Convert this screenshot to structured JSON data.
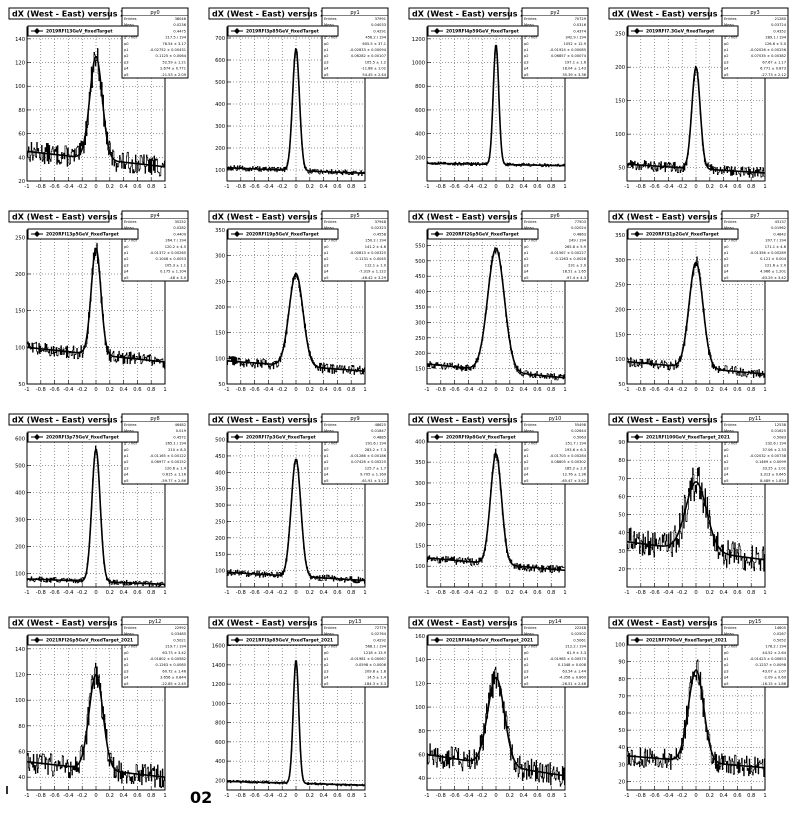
{
  "chart_data": [
    {
      "type": "line",
      "pad": "py0",
      "title": "dX (West - East) versus Z",
      "legend": "2019RFI13GeV_fixedTarget",
      "ylim": [
        20,
        150
      ],
      "yticks": [
        20,
        40,
        60,
        80,
        100,
        120,
        140
      ],
      "xlim": [
        -1,
        1
      ],
      "peak": 125,
      "base_left": 45,
      "base_right": 32,
      "width": 0.09,
      "noise": 9,
      "stats": [
        [
          "Entries",
          "38046"
        ],
        [
          "Mean",
          "0.0236"
        ],
        [
          "Std Dev",
          "0.4475"
        ],
        [
          "χ² / ndf",
          "217.5 / 194"
        ],
        [
          "p0",
          "76.54 ± 3.17"
        ],
        [
          "p1",
          "-0.02752 ± 0.00431"
        ],
        [
          "p2",
          "0.1125 ± 0.0064"
        ],
        [
          "p3",
          "52.59 ± 1.21"
        ],
        [
          "p4",
          "2.674 ± 0.771"
        ],
        [
          "p5",
          "-21.53 ± 2.09"
        ]
      ]
    },
    {
      "type": "line",
      "pad": "py1",
      "title": "dX (West - East) versus Z",
      "legend": "2019RFI3p85GeV_fixedTarget",
      "ylim": [
        50,
        750
      ],
      "yticks": [
        100,
        200,
        300,
        400,
        500,
        600,
        700
      ],
      "xlim": [
        -1,
        1
      ],
      "peak": 650,
      "base_left": 110,
      "base_right": 85,
      "width": 0.05,
      "noise": 12,
      "stats": [
        [
          "Entries",
          "37991"
        ],
        [
          "Mean",
          "0.04033"
        ],
        [
          "Std Dev",
          "0.4291"
        ],
        [
          "χ² / ndf",
          "456.2 / 194"
        ],
        [
          "p0",
          "605.5 ± 37.1"
        ],
        [
          "p1",
          "-0.02833 ± 0.00094"
        ],
        [
          "p2",
          "0.06282 ± 0.00107"
        ],
        [
          "p3",
          "105.5 ± 1.2"
        ],
        [
          "p4",
          "-11.88 ± 1.02"
        ],
        [
          "p5",
          "54.45 ± 2.44"
        ]
      ]
    },
    {
      "type": "line",
      "pad": "py2",
      "title": "dX (West - East) versus Z",
      "legend": "2019RFI4p59GeV_fixedTarget",
      "ylim": [
        0,
        1300
      ],
      "yticks": [
        200,
        400,
        600,
        800,
        1000,
        1200
      ],
      "xlim": [
        -1,
        1
      ],
      "peak": 1150,
      "base_left": 150,
      "base_right": 130,
      "width": 0.04,
      "noise": 14,
      "stats": [
        [
          "Entries",
          "70729"
        ],
        [
          "Mean",
          "0.0316"
        ],
        [
          "Std Dev",
          "0.4374"
        ],
        [
          "χ² / ndf",
          "342.9 / 194"
        ],
        [
          "p0",
          "1052 ± 12.9"
        ],
        [
          "p1",
          "-0.01924 ± 0.00085"
        ],
        [
          "p2",
          "0.06857 ± 0.00074"
        ],
        [
          "p3",
          "197.1 ± 1.6"
        ],
        [
          "p4",
          "18.04 ± 1.43"
        ],
        [
          "p5",
          "35.39 ± 3.36"
        ]
      ]
    },
    {
      "type": "line",
      "pad": "py3",
      "title": "dX (West - East) versus Z",
      "legend": "2019RFI7.3GeV_fixedTarget",
      "ylim": [
        30,
        260
      ],
      "yticks": [
        50,
        100,
        150,
        200,
        250
      ],
      "xlim": [
        -1,
        1
      ],
      "peak": 200,
      "base_left": 55,
      "base_right": 42,
      "width": 0.06,
      "noise": 8,
      "stats": [
        [
          "Entries",
          "21280"
        ],
        [
          "Mean",
          "0.03724"
        ],
        [
          "Std Dev",
          "0.4352"
        ],
        [
          "χ² / ndf",
          "289.1 / 194"
        ],
        [
          "p0",
          "126.6 ± 5.0"
        ],
        [
          "p1",
          "-0.02026 ± 0.00256"
        ],
        [
          "p2",
          "0.07035 ± 0.00382"
        ],
        [
          "p3",
          "67.67 ± 1.17"
        ],
        [
          "p4",
          "6.771 ± 0.873"
        ],
        [
          "p5",
          "-27.73 ± 2.12"
        ]
      ]
    },
    {
      "type": "line",
      "pad": "py4",
      "title": "dX (West - East) versus Z",
      "legend": "2020RFI13p5GeV_fixedTarget",
      "ylim": [
        50,
        260
      ],
      "yticks": [
        50,
        100,
        150,
        200,
        250
      ],
      "xlim": [
        -1,
        1
      ],
      "peak": 235,
      "base_left": 100,
      "base_right": 80,
      "width": 0.07,
      "noise": 9,
      "stats": [
        [
          "Entries",
          "35252"
        ],
        [
          "Mean",
          "0.0282"
        ],
        [
          "Std Dev",
          "0.4409"
        ],
        [
          "χ² / ndf",
          "264.7 / 194"
        ],
        [
          "p0",
          "120.2 ± 4.5"
        ],
        [
          "p1",
          "-0.01372 ± 0.00265"
        ],
        [
          "p2",
          "0.1048 ± 0.0053"
        ],
        [
          "p3",
          "105.3 ± 1.1"
        ],
        [
          "p4",
          "0.175 ± 1.104"
        ],
        [
          "p5",
          "-48 ± 3.0"
        ]
      ]
    },
    {
      "type": "line",
      "pad": "py5",
      "title": "dX (West - East) versus Z",
      "legend": "2020RFI19p5GeV_fixedTarget",
      "ylim": [
        50,
        350
      ],
      "yticks": [
        50,
        100,
        150,
        200,
        250,
        300,
        350
      ],
      "xlim": [
        -1,
        1
      ],
      "peak": 265,
      "base_left": 95,
      "base_right": 75,
      "width": 0.1,
      "noise": 10,
      "stats": [
        [
          "Entries",
          "37948"
        ],
        [
          "Mean",
          "0.02323"
        ],
        [
          "Std Dev",
          "0.4558"
        ],
        [
          "χ² / ndf",
          "250.2 / 194"
        ],
        [
          "p0",
          "141.2 ± 4.6"
        ],
        [
          "p1",
          "-0.00813 ± 0.00325"
        ],
        [
          "p2",
          "0.1131 ± 0.0045"
        ],
        [
          "p3",
          "112.1 ± 1.0"
        ],
        [
          "p4",
          "-7.319 ± 1.122"
        ],
        [
          "p5",
          "-46.42 ± 3.29"
        ]
      ]
    },
    {
      "type": "line",
      "pad": "py6",
      "title": "dX (West - East) versus Z",
      "legend": "2020RFI26p5GeV_fixedTarget",
      "ylim": [
        100,
        600
      ],
      "yticks": [
        150,
        200,
        250,
        300,
        350,
        400,
        450,
        500,
        550
      ],
      "xlim": [
        -1,
        1
      ],
      "peak": 540,
      "base_left": 165,
      "base_right": 120,
      "width": 0.12,
      "noise": 12,
      "stats": [
        [
          "Entries",
          "77503"
        ],
        [
          "Mean",
          "0.02024"
        ],
        [
          "Std Dev",
          "0.4863"
        ],
        [
          "χ² / ndf",
          "249 / 194"
        ],
        [
          "p0",
          "265.8 ± 5.9"
        ],
        [
          "p1",
          "-0.01567 ± 0.00227"
        ],
        [
          "p2",
          "0.1263 ± 0.0028"
        ],
        [
          "p3",
          "231 ± 2.0"
        ],
        [
          "p4",
          "18.51 ± 1.65"
        ],
        [
          "p5",
          "-97.4 ± 4.3"
        ]
      ]
    },
    {
      "type": "line",
      "pad": "py7",
      "title": "dX (West - East) versus Z",
      "legend": "2020RFI31p2GeV_fixedTarget",
      "ylim": [
        50,
        360
      ],
      "yticks": [
        50,
        100,
        150,
        200,
        250,
        300,
        350
      ],
      "xlim": [
        -1,
        1
      ],
      "peak": 295,
      "base_left": 95,
      "base_right": 70,
      "width": 0.1,
      "noise": 10,
      "stats": [
        [
          "Entries",
          "43137"
        ],
        [
          "Mean",
          "0.01962"
        ],
        [
          "Std Dev",
          "0.4842"
        ],
        [
          "χ² / ndf",
          "207.7 / 194"
        ],
        [
          "p0",
          "171.1 ± 4.6"
        ],
        [
          "p1",
          "-0.01356 ± 0.00289"
        ],
        [
          "p2",
          "0.121 ± 0.004"
        ],
        [
          "p3",
          "121.6 ± 2.0"
        ],
        [
          "p4",
          "4.966 ± 1.201"
        ],
        [
          "p5",
          "-63.29 ± 3.42"
        ]
      ]
    },
    {
      "type": "line",
      "pad": "py8",
      "title": "dX (West - East) versus Z",
      "legend": "2020RFI3p75GeV_fixedTarget",
      "ylim": [
        50,
        620
      ],
      "yticks": [
        100,
        200,
        300,
        400,
        500,
        600
      ],
      "xlim": [
        -1,
        1
      ],
      "peak": 560,
      "base_left": 80,
      "base_right": 60,
      "width": 0.06,
      "noise": 10,
      "stats": [
        [
          "Entries",
          "46482"
        ],
        [
          "Mean",
          "0.019"
        ],
        [
          "Std Dev",
          "0.4572"
        ],
        [
          "χ² / ndf",
          "265.1 / 194"
        ],
        [
          "p0",
          "210 ± 8.5"
        ],
        [
          "p1",
          "-0.01165 ± 0.00122"
        ],
        [
          "p2",
          "0.06977 ± 0.00152"
        ],
        [
          "p3",
          "120.6 ± 1.4"
        ],
        [
          "p4",
          "0.615 ± 1.16"
        ],
        [
          "p5",
          "-59.77 ± 2.86"
        ]
      ]
    },
    {
      "type": "line",
      "pad": "py9",
      "title": "dX (West - East) versus Z",
      "legend": "2020RFI7p3GeV_fixedTarget",
      "ylim": [
        50,
        520
      ],
      "yticks": [
        100,
        150,
        200,
        250,
        300,
        350,
        400,
        450,
        500
      ],
      "xlim": [
        -1,
        1
      ],
      "peak": 440,
      "base_left": 95,
      "base_right": 70,
      "width": 0.07,
      "noise": 10,
      "stats": [
        [
          "Entries",
          "48625"
        ],
        [
          "Mean",
          "0.01847"
        ],
        [
          "Std Dev",
          "0.4885"
        ],
        [
          "χ² / ndf",
          "291.6 / 194"
        ],
        [
          "p0",
          "283.2 ± 7.3"
        ],
        [
          "p1",
          "-0.01286 ± 0.00186"
        ],
        [
          "p2",
          "0.07426 ± 0.00225"
        ],
        [
          "p3",
          "125.7 ± 1.7"
        ],
        [
          "p4",
          "9.705 ± 1.169"
        ],
        [
          "p5",
          "-61.91 ± 3.12"
        ]
      ]
    },
    {
      "type": "line",
      "pad": "py10",
      "title": "dX (West - East) versus Z",
      "legend": "2020RFI9p8GeV_fixedTarget",
      "ylim": [
        50,
        420
      ],
      "yticks": [
        100,
        150,
        200,
        250,
        300,
        350,
        400
      ],
      "xlim": [
        -1,
        1
      ],
      "peak": 370,
      "base_left": 120,
      "base_right": 90,
      "width": 0.08,
      "noise": 10,
      "stats": [
        [
          "Entries",
          "55498"
        ],
        [
          "Mean",
          "0.02644"
        ],
        [
          "Std Dev",
          "0.5063"
        ],
        [
          "χ² / ndf",
          "251.7 / 194"
        ],
        [
          "p0",
          "193.6 ± 6.3"
        ],
        [
          "p1",
          "-0.01703 ± 0.00284"
        ],
        [
          "p2",
          "0.08605 ± 0.00302"
        ],
        [
          "p3",
          "185.2 ± 2.0"
        ],
        [
          "p4",
          "12.76 ± 1.36"
        ],
        [
          "p5",
          "-65.47 ± 3.62"
        ]
      ]
    },
    {
      "type": "line",
      "pad": "py11",
      "title": "dX (West - East) versus Z",
      "legend": "2021RFI100GeV_fixedTarget_2021",
      "ylim": [
        10,
        95
      ],
      "yticks": [
        20,
        30,
        40,
        50,
        60,
        70,
        80,
        90
      ],
      "xlim": [
        -1,
        1
      ],
      "peak": 68,
      "base_left": 35,
      "base_right": 25,
      "width": 0.15,
      "noise": 8,
      "stats": [
        [
          "Entries",
          "12538"
        ],
        [
          "Mean",
          "0.01625"
        ],
        [
          "Std Dev",
          "0.5083"
        ],
        [
          "χ² / ndf",
          "232.6 / 194"
        ],
        [
          "p0",
          "37.06 ± 2.33"
        ],
        [
          "p1",
          "-0.02032 ± 0.00738"
        ],
        [
          "p2",
          "0.1469 ± 0.0099"
        ],
        [
          "p3",
          "33.25 ± 1.01"
        ],
        [
          "p4",
          "3.313 ± 0.645"
        ],
        [
          "p5",
          "8.489 ± 1.834"
        ]
      ]
    },
    {
      "type": "line",
      "pad": "py12",
      "title": "dX (West - East) versus Z",
      "legend": "2021RFI26p5GeV_fixedTarget_2021",
      "ylim": [
        30,
        150
      ],
      "yticks": [
        40,
        60,
        80,
        100,
        120,
        140
      ],
      "xlim": [
        -1,
        1
      ],
      "peak": 120,
      "base_left": 52,
      "base_right": 40,
      "width": 0.1,
      "noise": 9,
      "stats": [
        [
          "Entries",
          "22992"
        ],
        [
          "Mean",
          "0.03485"
        ],
        [
          "Std Dev",
          "0.5021"
        ],
        [
          "χ² / ndf",
          "219.7 / 194"
        ],
        [
          "p0",
          "63.73 ± 3.42"
        ],
        [
          "p1",
          "-0.01802 ± 0.00582"
        ],
        [
          "p2",
          "0.1263 ± 0.0085"
        ],
        [
          "p3",
          "60.72 ± 1.46"
        ],
        [
          "p4",
          "3.656 ± 0.844"
        ],
        [
          "p5",
          "-22.85 ± 2.45"
        ]
      ]
    },
    {
      "type": "line",
      "pad": "py13",
      "title": "dX (West - East) versus Z",
      "legend": "2021RFI3p85GeV_fixedTarget_2021",
      "ylim": [
        100,
        1700
      ],
      "yticks": [
        200,
        400,
        600,
        800,
        1000,
        1200,
        1400,
        1600
      ],
      "xlim": [
        -1,
        1
      ],
      "peak": 1450,
      "base_left": 190,
      "base_right": 150,
      "width": 0.04,
      "noise": 14,
      "stats": [
        [
          "Entries",
          "72779"
        ],
        [
          "Mean",
          "0.02764"
        ],
        [
          "Std Dev",
          "0.4292"
        ],
        [
          "χ² / ndf",
          "568.1 / 194"
        ],
        [
          "p0",
          "1218 ± 13.9"
        ],
        [
          "p1",
          "-0.01981 ± 0.00067"
        ],
        [
          "p2",
          "0.0598 ± 0.0006"
        ],
        [
          "p3",
          "209.8 ± 1.8"
        ],
        [
          "p4",
          "14.5 ± 1.4"
        ],
        [
          "p5",
          "-184.3 ± 3.3"
        ]
      ]
    },
    {
      "type": "line",
      "pad": "py14",
      "title": "dX (West - East) versus Z",
      "legend": "2021RFI44p5GeV_fixedTarget_2021",
      "ylim": [
        30,
        160
      ],
      "yticks": [
        40,
        60,
        80,
        100,
        120,
        140,
        160
      ],
      "xlim": [
        -1,
        1
      ],
      "peak": 125,
      "base_left": 60,
      "base_right": 42,
      "width": 0.12,
      "noise": 10,
      "stats": [
        [
          "Entries",
          "22248"
        ],
        [
          "Mean",
          "0.02502"
        ],
        [
          "Std Dev",
          "0.5061"
        ],
        [
          "χ² / ndf",
          "212.2 / 194"
        ],
        [
          "p0",
          "61.9 ± 3.3"
        ],
        [
          "p1",
          "-0.01985 ± 0.00575"
        ],
        [
          "p2",
          "0.1348 ± 0.008"
        ],
        [
          "p3",
          "63.54 ± 1.44"
        ],
        [
          "p4",
          "-4.356 ± 0.869"
        ],
        [
          "p5",
          "-26.51 ± 2.48"
        ]
      ]
    },
    {
      "type": "line",
      "pad": "py15",
      "title": "dX (West - East) versus Z",
      "legend": "2021RFI70GeV_fixedTarget_2021",
      "ylim": [
        15,
        105
      ],
      "yticks": [
        20,
        30,
        40,
        50,
        60,
        70,
        80,
        90,
        100
      ],
      "xlim": [
        -1,
        1
      ],
      "peak": 85,
      "base_left": 35,
      "base_right": 28,
      "width": 0.11,
      "noise": 6,
      "stats": [
        [
          "Entries",
          "14605"
        ],
        [
          "Mean",
          "0.0267"
        ],
        [
          "Std Dev",
          "0.5052"
        ],
        [
          "χ² / ndf",
          "178.2 / 194"
        ],
        [
          "p0",
          "44.52 ± 2.64"
        ],
        [
          "p1",
          "-0.01423 ± 0.00653"
        ],
        [
          "p2",
          "0.1237 ± 0.0098"
        ],
        [
          "p3",
          "43.07 ± 1.07"
        ],
        [
          "p4",
          "-2.09 ± 0.69"
        ],
        [
          "p5",
          "-16.15 ± 1.88"
        ]
      ]
    }
  ],
  "xticks": [
    -1,
    -0.8,
    -0.6,
    -0.4,
    -0.2,
    0,
    0.2,
    0.4,
    0.6,
    0.8,
    1
  ],
  "page_note": "02"
}
